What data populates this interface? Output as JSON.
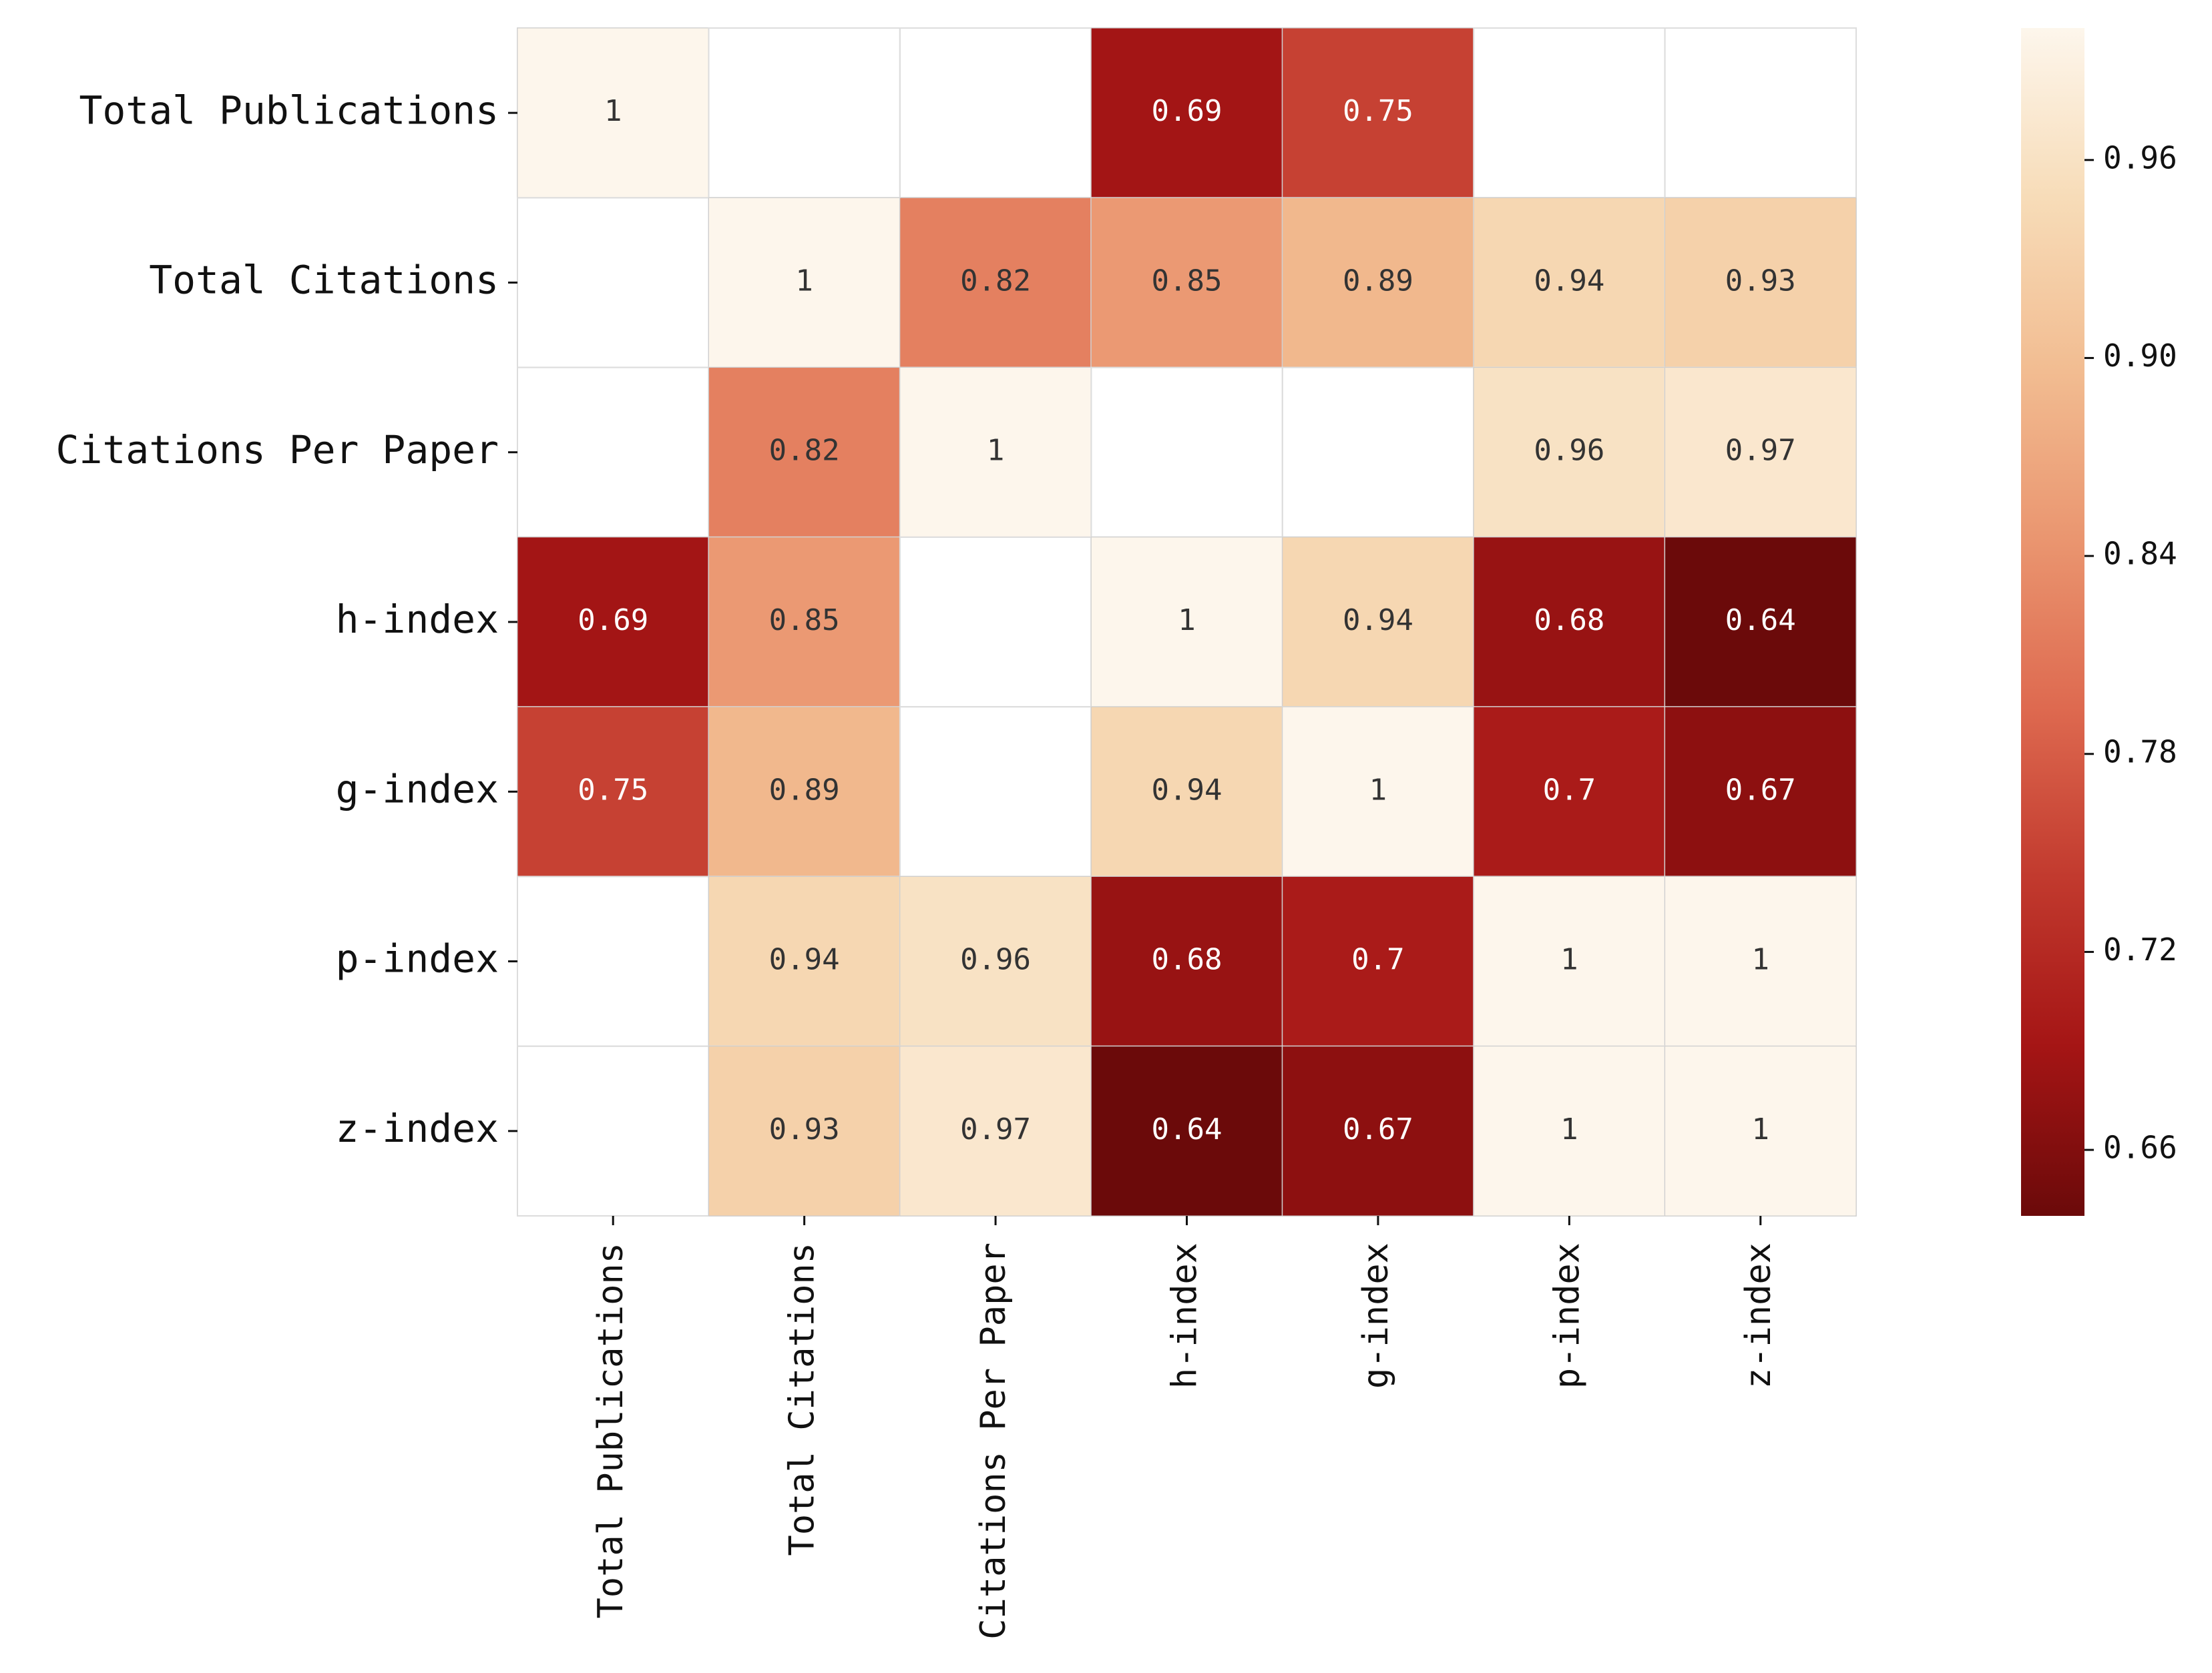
{
  "chart_data": {
    "type": "heatmap",
    "x_categories": [
      "Total Publications",
      "Total Citations",
      "Citations Per Paper",
      "h-index",
      "g-index",
      "p-index",
      "z-index"
    ],
    "y_categories": [
      "Total Publications",
      "Total Citations",
      "Citations Per Paper",
      "h-index",
      "g-index",
      "p-index",
      "z-index"
    ],
    "values": [
      [
        1,
        null,
        null,
        0.69,
        0.75,
        null,
        null
      ],
      [
        null,
        1,
        0.82,
        0.85,
        0.89,
        0.94,
        0.93
      ],
      [
        null,
        0.82,
        1,
        null,
        null,
        0.96,
        0.97
      ],
      [
        0.69,
        0.85,
        null,
        1,
        0.94,
        0.68,
        0.64
      ],
      [
        0.75,
        0.89,
        null,
        0.94,
        1,
        0.7,
        0.67
      ],
      [
        null,
        0.94,
        0.96,
        0.68,
        0.7,
        1,
        1
      ],
      [
        null,
        0.93,
        0.97,
        0.64,
        0.67,
        1,
        1
      ]
    ],
    "colormap": [
      "#6b0a0a",
      "#a51515",
      "#c23a2e",
      "#de6a50",
      "#ea9670",
      "#f2bd92",
      "#f7dcb8",
      "#fdf6ec"
    ],
    "clim": [
      0.64,
      1
    ],
    "colorbar_ticks": [
      0.66,
      0.72,
      0.78,
      0.84,
      {
        "value": 0.9,
        "label": "0.90"
      },
      0.96
    ]
  }
}
